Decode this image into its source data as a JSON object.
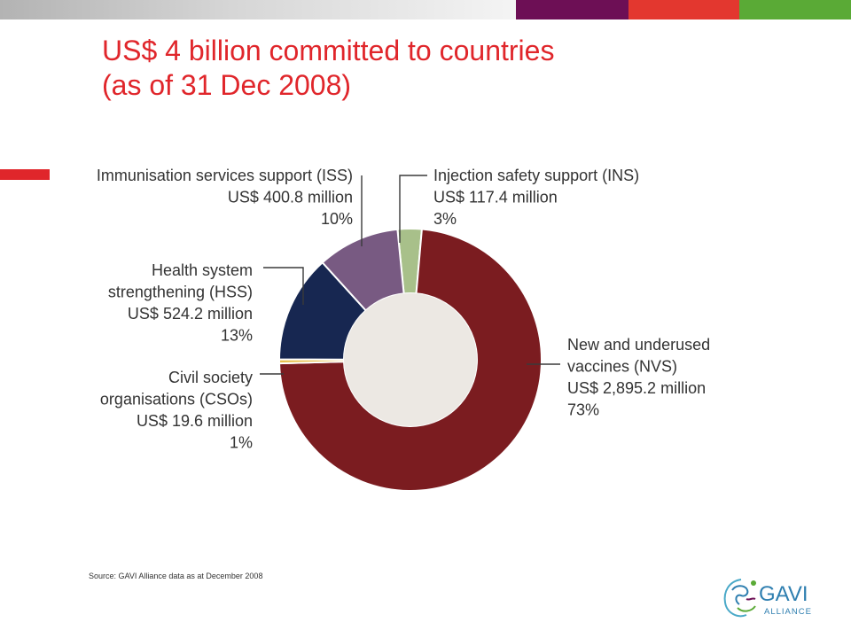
{
  "header": {
    "title_line1": "US$ 4 billion committed to countries",
    "title_line2": "(as of 31 Dec 2008)"
  },
  "colors": {
    "title": "#e0262b",
    "bar_purple": "#6d0f55",
    "bar_red": "#e3372f",
    "bar_green": "#5aaa36"
  },
  "chart_data": {
    "type": "pie",
    "variant": "donut",
    "slices": [
      {
        "name": "Injection safety support (INS)",
        "lines": [
          "Injection safety support (INS)",
          "US$ 117.4 million",
          "3%"
        ],
        "value": 117.4,
        "percent": 3,
        "color": "#a8c08a"
      },
      {
        "name": "New and underused vaccines (NVS)",
        "lines": [
          "New and underused",
          "vaccines (NVS)",
          "US$ 2,895.2 million",
          "73%"
        ],
        "value": 2895.2,
        "percent": 73,
        "color": "#7b1c20"
      },
      {
        "name": "Civil society organisations (CSOs)",
        "lines": [
          "Civil society",
          "organisations (CSOs)",
          "US$ 19.6 million",
          "1%"
        ],
        "value": 19.6,
        "percent": 1,
        "color": "#e7c14c"
      },
      {
        "name": "Health system strengthening (HSS)",
        "lines": [
          "Health system",
          "strengthening (HSS)",
          "US$ 524.2 million",
          "13%"
        ],
        "value": 524.2,
        "percent": 13,
        "color": "#172751"
      },
      {
        "name": "Immunisation services support (ISS)",
        "lines": [
          "Immunisation services support (ISS)",
          "US$ 400.8 million",
          "10%"
        ],
        "value": 400.8,
        "percent": 10,
        "color": "#785a82"
      }
    ],
    "center_color": "#ece8e3"
  },
  "footer": {
    "source": "Source: GAVI Alliance data as at December 2008",
    "logo_text": "GAVI",
    "logo_subtext": "ALLIANCE"
  }
}
